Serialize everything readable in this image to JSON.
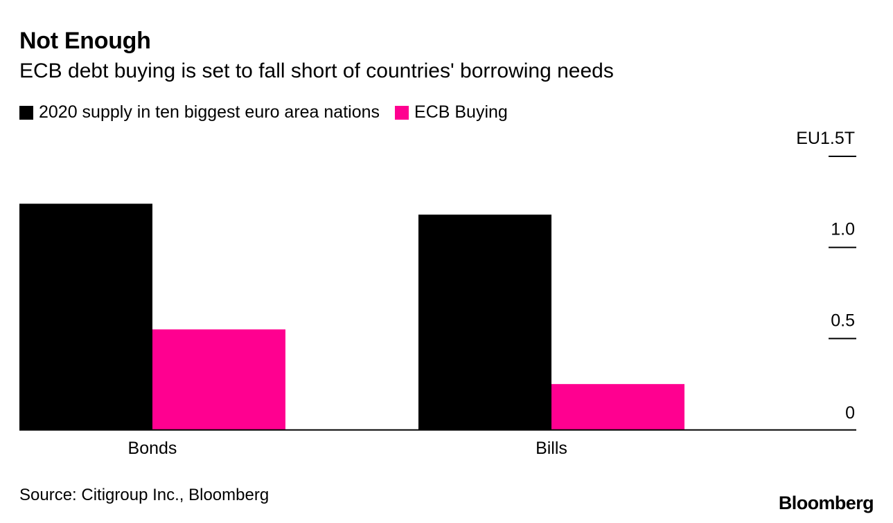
{
  "header": {
    "title": "Not Enough",
    "subtitle": "ECB debt buying is set to fall short of countries' borrowing needs"
  },
  "footer": {
    "source": "Source: Citigroup Inc., Bloomberg",
    "logo_text": "Bloomberg"
  },
  "chart_data": {
    "type": "bar",
    "title": "Not Enough",
    "subtitle": "ECB debt buying is set to fall short of countries' borrowing needs",
    "categories": [
      "Bonds",
      "Bills"
    ],
    "series": [
      {
        "name": "2020 supply in ten biggest euro area nations",
        "color": "#000000",
        "values": [
          1.24,
          1.18
        ]
      },
      {
        "name": "ECB Buying",
        "color": "#ff0090",
        "values": [
          0.55,
          0.25
        ]
      }
    ],
    "ylim": [
      0,
      1.5
    ],
    "yticks": [
      {
        "value": 0,
        "label": "0"
      },
      {
        "value": 0.5,
        "label": "0.5"
      },
      {
        "value": 1.0,
        "label": "1.0"
      },
      {
        "value": 1.5,
        "label": "EU1.5T"
      }
    ],
    "y_axis_position": "right",
    "legend_position": "top-left",
    "xlabel": "",
    "ylabel": "",
    "grid": false
  }
}
